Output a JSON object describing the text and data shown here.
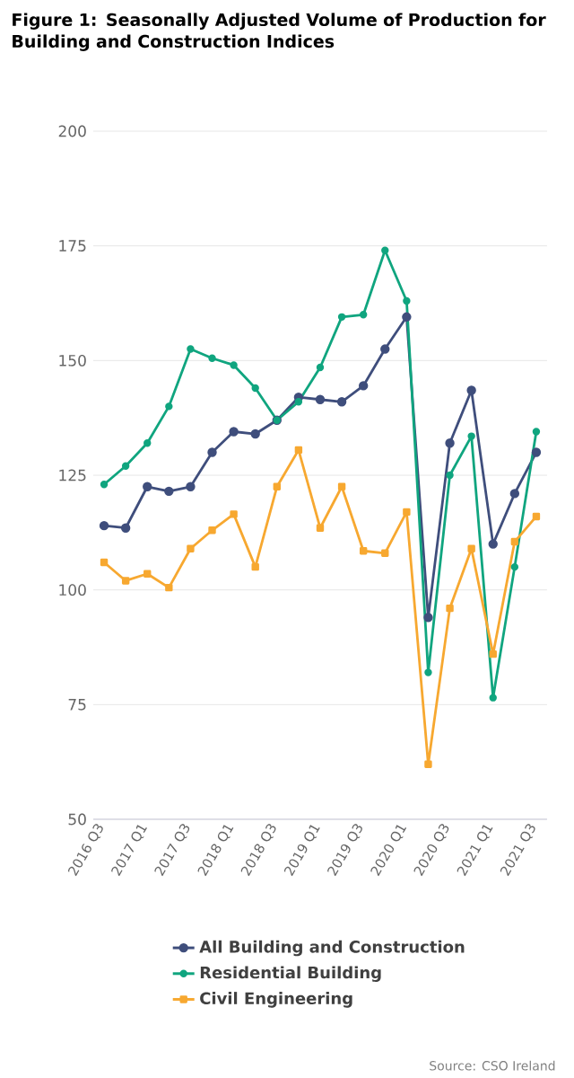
{
  "chart_data": {
    "type": "line",
    "title": "Figure 1: Seasonally Adjusted Volume of Production for Building and Construction Indices",
    "categories": [
      "2016 Q3",
      null,
      "2017 Q1",
      null,
      "2017 Q3",
      null,
      "2018 Q1",
      null,
      "2018 Q3",
      null,
      "2019 Q1",
      null,
      "2019 Q3",
      null,
      "2020 Q1",
      null,
      "2020 Q3",
      null,
      "2021 Q1",
      null,
      "2021 Q3"
    ],
    "series": [
      {
        "name": "All Building and Construction",
        "color": "#3f4e7c",
        "marker": "circle",
        "values": [
          114,
          113.5,
          122.5,
          121.5,
          122.5,
          130,
          134.5,
          134,
          137,
          142,
          141.5,
          141,
          144.5,
          152.5,
          159.5,
          94,
          132,
          143.5,
          110,
          121,
          130
        ]
      },
      {
        "name": "Residential Building",
        "color": "#10a57f",
        "marker": "circle",
        "values": [
          123,
          127,
          132,
          140,
          152.5,
          150.5,
          149,
          144,
          137,
          141,
          148.5,
          159.5,
          160,
          174,
          163,
          82,
          125,
          133.5,
          76.5,
          105,
          134.5
        ]
      },
      {
        "name": "Civil Engineering",
        "color": "#f7a830",
        "marker": "square",
        "values": [
          106,
          102,
          103.5,
          100.5,
          109,
          113,
          116.5,
          105,
          122.5,
          130.5,
          113.5,
          122.5,
          108.5,
          108,
          117,
          62,
          96,
          109,
          86,
          110.5,
          116
        ]
      }
    ],
    "ylim": [
      50,
      200
    ],
    "yticks": [
      50,
      75,
      100,
      125,
      150,
      175,
      200
    ],
    "grid": "y",
    "legend": "bottom",
    "annotations": [
      "Source: CSO Ireland"
    ]
  }
}
